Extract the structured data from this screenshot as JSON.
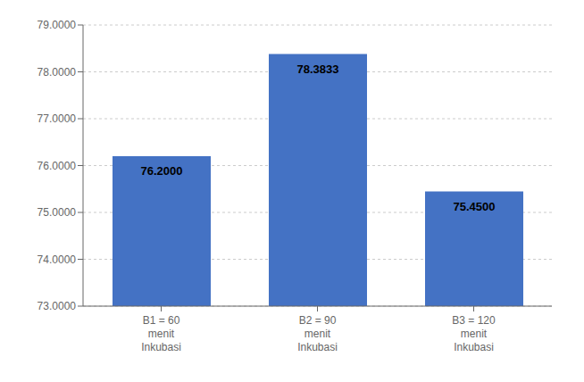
{
  "chart_data": {
    "type": "bar",
    "categories": [
      "B1 = 60\nmenit\nInkubasi",
      "B2 = 90\nmenit\nInkubasi",
      "B3 = 120\nmenit\nInkubasi"
    ],
    "values": [
      76.2,
      78.3833,
      75.45
    ],
    "value_labels": [
      "76.2000",
      "78.3833",
      "75.4500"
    ],
    "data_labels": true,
    "color": "#4472C4",
    "ylim": [
      73.0,
      79.0
    ],
    "yticks": [
      {
        "value": 73.0,
        "label": "73.0000"
      },
      {
        "value": 74.0,
        "label": "74.0000"
      },
      {
        "value": 75.0,
        "label": "75.0000"
      },
      {
        "value": 76.0,
        "label": "76.0000"
      },
      {
        "value": 77.0,
        "label": "77.0000"
      },
      {
        "value": 78.0,
        "label": "78.0000"
      },
      {
        "value": 79.0,
        "label": "79.0000"
      }
    ],
    "grid": true
  }
}
